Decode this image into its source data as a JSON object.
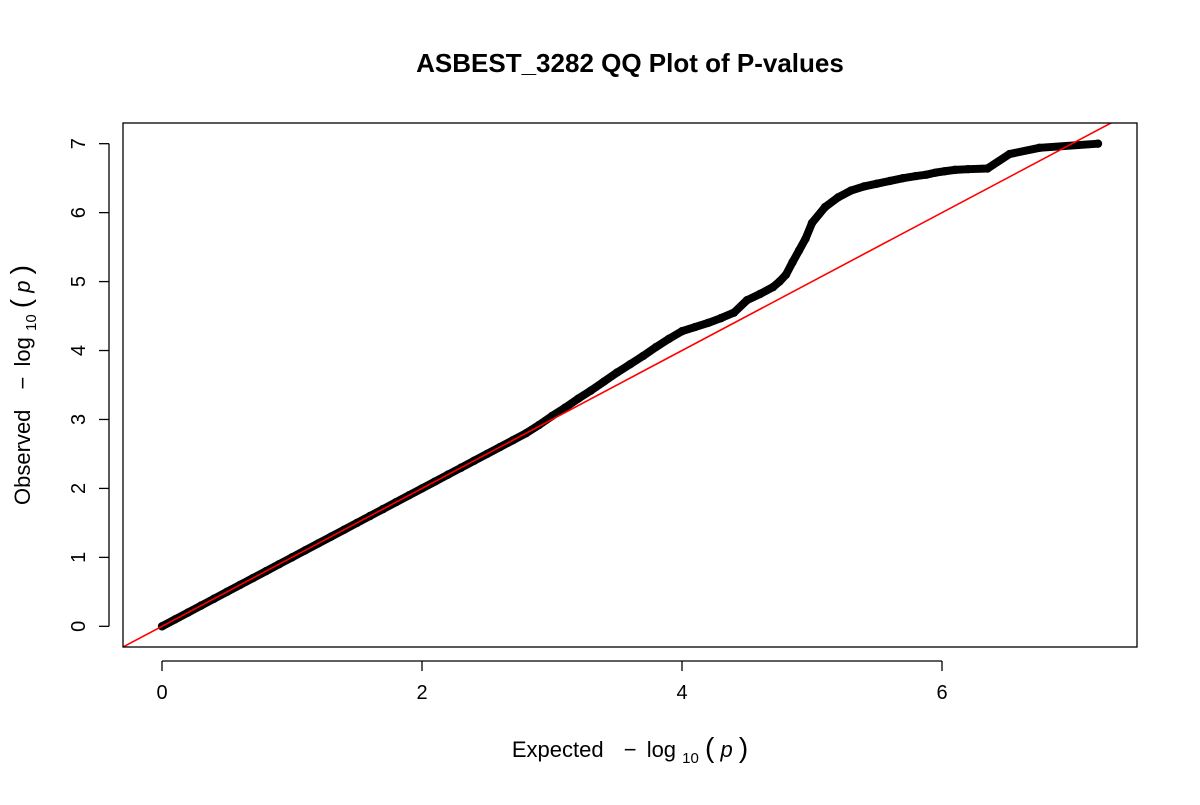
{
  "colors": {
    "points": "#000000",
    "reference_line": "#ff0000",
    "background": "#ffffff"
  },
  "chart_data": {
    "type": "scatter",
    "title": "ASBEST_3282 QQ Plot of P-values",
    "xlabel_prefix": "Expected",
    "ylabel_prefix": "Observed",
    "axis_unit": "−log₁₀(p)",
    "axis_unit_parts": {
      "minus": "−",
      "log": "log",
      "sub": "10",
      "var_open": "(",
      "var": "p",
      "var_close": ")"
    },
    "xlim": [
      -0.3,
      7.5
    ],
    "ylim": [
      -0.3,
      7.3
    ],
    "x_ticks": [
      0,
      2,
      4,
      6
    ],
    "x_tick_labels": [
      "0",
      "2",
      "4",
      "6"
    ],
    "y_ticks": [
      0,
      1,
      2,
      3,
      4,
      5,
      6,
      7
    ],
    "y_tick_labels": [
      "0",
      "1",
      "2",
      "3",
      "4",
      "5",
      "6",
      "7"
    ],
    "grid": false,
    "reference_line": {
      "type": "identity",
      "slope": 1,
      "intercept": 0
    },
    "series": [
      {
        "x": [
          0,
          0.1,
          0.2,
          0.3,
          0.4,
          0.5,
          0.6,
          0.7,
          0.8,
          0.9,
          1.0,
          1.1,
          1.2,
          1.3,
          1.4,
          1.5,
          1.6,
          1.7,
          1.8,
          1.9,
          2.0,
          2.1,
          2.2,
          2.3,
          2.4,
          2.5,
          2.6,
          2.7,
          2.8,
          2.9,
          3.0,
          3.1,
          3.2,
          3.3,
          3.4,
          3.5,
          3.6,
          3.7,
          3.8,
          3.9,
          4.0,
          4.1,
          4.2,
          4.3,
          4.4,
          4.5,
          4.6,
          4.7,
          4.75,
          4.8,
          4.85,
          4.9,
          4.95,
          5.0,
          5.1,
          5.2,
          5.3,
          5.4,
          5.5,
          5.6,
          5.7,
          5.8,
          5.88,
          5.95,
          6.02,
          6.1,
          6.2,
          6.35,
          6.52,
          6.75,
          7.2
        ],
        "y": [
          0,
          0.1,
          0.2,
          0.3,
          0.4,
          0.5,
          0.6,
          0.7,
          0.8,
          0.9,
          1.0,
          1.1,
          1.2,
          1.3,
          1.4,
          1.5,
          1.6,
          1.7,
          1.8,
          1.9,
          2.0,
          2.1,
          2.2,
          2.3,
          2.4,
          2.5,
          2.6,
          2.7,
          2.8,
          2.92,
          3.05,
          3.17,
          3.3,
          3.42,
          3.55,
          3.68,
          3.8,
          3.92,
          4.05,
          4.17,
          4.28,
          4.34,
          4.4,
          4.47,
          4.55,
          4.73,
          4.82,
          4.92,
          5.0,
          5.1,
          5.28,
          5.45,
          5.62,
          5.85,
          6.08,
          6.22,
          6.32,
          6.38,
          6.42,
          6.46,
          6.5,
          6.53,
          6.55,
          6.58,
          6.6,
          6.62,
          6.63,
          6.64,
          6.85,
          6.94,
          7.0
        ]
      }
    ]
  }
}
